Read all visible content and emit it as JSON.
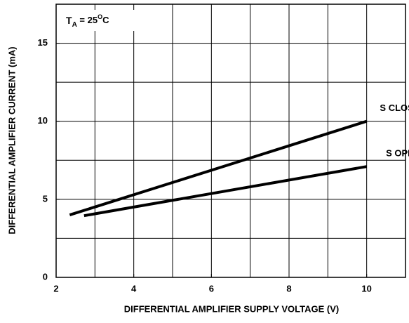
{
  "chart_data": {
    "type": "line",
    "annotation": {
      "base": "T",
      "sub": "A",
      "mid": " = 25",
      "sup": "O",
      "end": "C"
    },
    "xlabel": "DIFFERENTIAL AMPLIFIER SUPPLY VOLTAGE (V)",
    "ylabel": "DIFFERENTIAL AMPLIFIER CURRENT (mA)",
    "xlim": [
      2,
      11
    ],
    "xticks": [
      2,
      4,
      6,
      8,
      10
    ],
    "xgrid": [
      3,
      4,
      5,
      6,
      7,
      8,
      9,
      10
    ],
    "ylim": [
      0,
      17.5
    ],
    "yticks": [
      0,
      5,
      10,
      15
    ],
    "ygrid": [
      2.5,
      5,
      7.5,
      10,
      12.5,
      15
    ],
    "grid": true,
    "series": [
      {
        "name": "S CLOSED",
        "color": "#000000",
        "x": [
          2.35,
          10
        ],
        "values": [
          4.0,
          10.0
        ]
      },
      {
        "name": "S OPEN",
        "color": "#000000",
        "x": [
          2.72,
          10
        ],
        "values": [
          3.95,
          7.1
        ]
      }
    ]
  }
}
